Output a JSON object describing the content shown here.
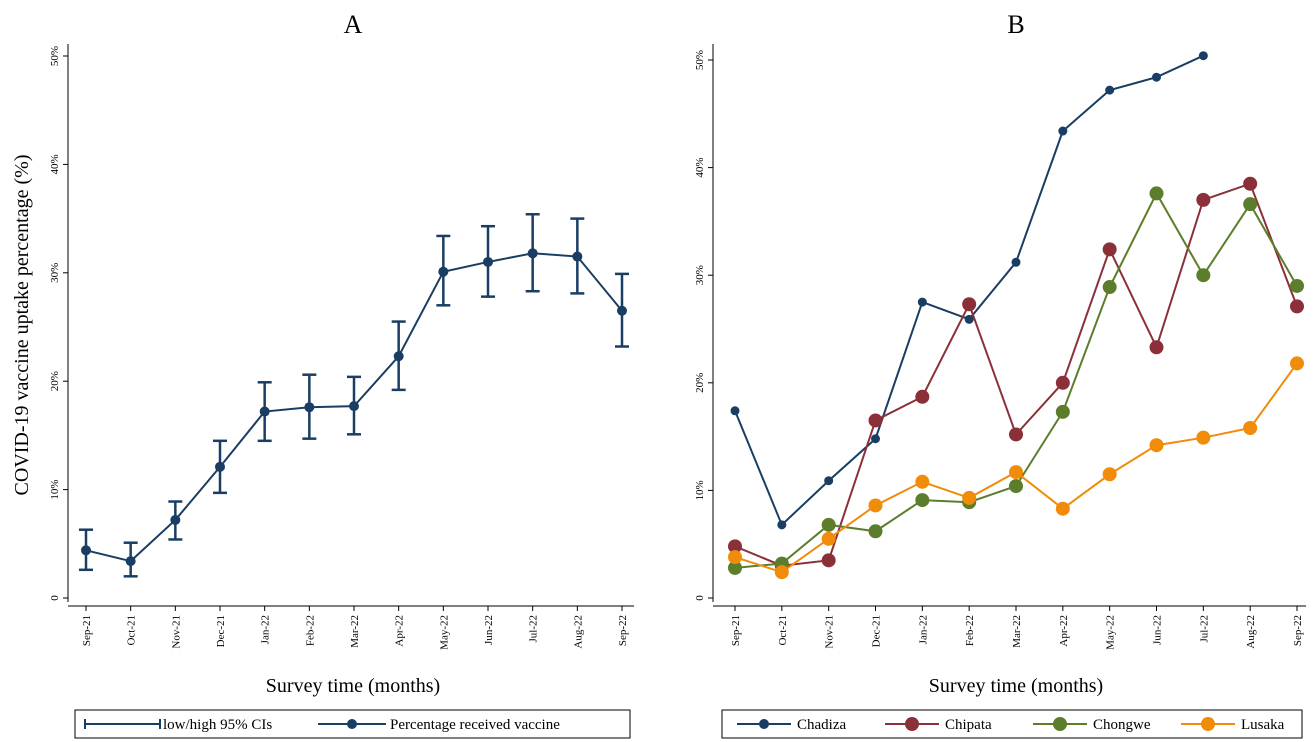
{
  "chart_data": [
    {
      "type": "line",
      "title": "A",
      "xlabel": "Survey time (months)",
      "ylabel": "COVID-19 vaccine uptake percentage (%)",
      "ylim": [
        0,
        50
      ],
      "yticks": [
        "0",
        "10%",
        "20%",
        "30%",
        "40%",
        "50%"
      ],
      "categories": [
        "Sep-21",
        "Oct-21",
        "Nov-21",
        "Dec-21",
        "Jan-22",
        "Feb-22",
        "Mar-22",
        "Apr-22",
        "May-22",
        "Jun-22",
        "Jul-22",
        "Aug-22",
        "Sep-22"
      ],
      "series": [
        {
          "name": "Percentage received vaccine",
          "color": "#1a3e63",
          "values": [
            4.4,
            3.4,
            7.2,
            12.1,
            17.2,
            17.6,
            17.7,
            22.3,
            30.1,
            31.0,
            31.8,
            31.5,
            26.5
          ],
          "ci_low": [
            2.6,
            2.0,
            5.4,
            9.7,
            14.5,
            14.7,
            15.1,
            19.2,
            27.0,
            27.8,
            28.3,
            28.1,
            23.2
          ],
          "ci_high": [
            6.3,
            5.1,
            8.9,
            14.5,
            19.9,
            20.6,
            20.4,
            25.5,
            33.4,
            34.3,
            35.4,
            35.0,
            29.9
          ]
        }
      ],
      "legend": {
        "position": "bottom",
        "ci_label": "low/high 95% CIs",
        "series_label": "Percentage received vaccine"
      }
    },
    {
      "type": "line",
      "title": "B",
      "xlabel": "Survey time (months)",
      "ylim": [
        0,
        50
      ],
      "yticks": [
        "0",
        "10%",
        "20%",
        "30%",
        "40%",
        "50%"
      ],
      "categories": [
        "Sep-21",
        "Oct-21",
        "Nov-21",
        "Dec-21",
        "Jan-22",
        "Feb-22",
        "Mar-22",
        "Apr-22",
        "May-22",
        "Jun-22",
        "Jul-22",
        "Aug-22",
        "Sep-22"
      ],
      "series": [
        {
          "name": "Chadiza",
          "color": "#1a3e63",
          "values": [
            17.4,
            6.8,
            10.9,
            14.8,
            27.5,
            25.9,
            31.2,
            43.4,
            47.2,
            48.4,
            50.4,
            null,
            null
          ]
        },
        {
          "name": "Chipata",
          "color": "#8b3038",
          "values": [
            4.8,
            3.0,
            3.5,
            16.5,
            18.7,
            27.3,
            15.2,
            20.0,
            32.4,
            23.3,
            37.0,
            38.5,
            27.1
          ]
        },
        {
          "name": "Chongwe",
          "color": "#5b7d2c",
          "values": [
            2.8,
            3.2,
            6.8,
            6.2,
            9.1,
            8.9,
            10.4,
            17.3,
            28.9,
            37.6,
            30.0,
            36.6,
            29.0
          ]
        },
        {
          "name": "Lusaka",
          "color": "#f08c0a",
          "values": [
            3.8,
            2.4,
            5.5,
            8.6,
            10.8,
            9.3,
            11.7,
            8.3,
            11.5,
            14.2,
            14.9,
            15.8,
            21.8
          ]
        }
      ],
      "legend": {
        "position": "bottom"
      }
    }
  ]
}
